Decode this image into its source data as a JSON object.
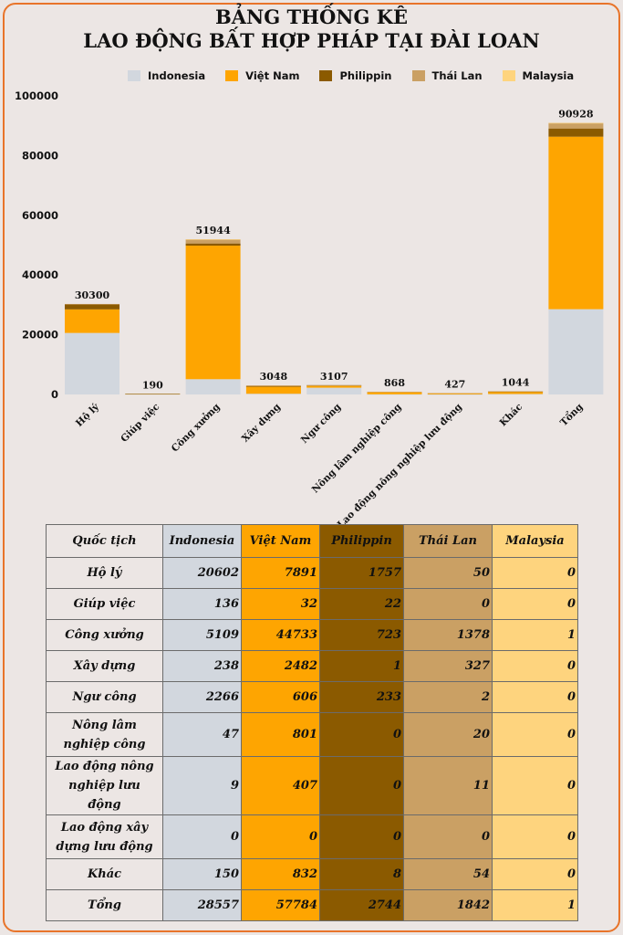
{
  "title_line1": "BẢNG THỐNG KÊ",
  "title_line2": "LAO ĐỘNG BẤT HỢP PHÁP TẠI ĐÀI LOAN",
  "colors": {
    "Indonesia": "#d2d7de",
    "Việt Nam": "#fea501",
    "Philippin": "#8b5a00",
    "Thái Lan": "#caa064",
    "Malaysia": "#fed47e"
  },
  "chart_data": {
    "type": "bar",
    "stacked": true,
    "ylim": [
      0,
      100000
    ],
    "yticks": [
      0,
      20000,
      40000,
      60000,
      80000,
      100000
    ],
    "categories": [
      "Hộ lý",
      "Giúp việc",
      "Công xưởng",
      "Xây dựng",
      "Ngư công",
      "Nông lâm nghiệp công",
      "Lao động nông nghiệp lưu động",
      "Khác",
      "Tổng"
    ],
    "series": [
      {
        "name": "Indonesia",
        "values": [
          20602,
          136,
          5109,
          238,
          2266,
          47,
          9,
          150,
          28557
        ]
      },
      {
        "name": "Việt Nam",
        "values": [
          7891,
          32,
          44733,
          2482,
          606,
          801,
          407,
          832,
          57784
        ]
      },
      {
        "name": "Philippin",
        "values": [
          1757,
          22,
          723,
          1,
          233,
          0,
          0,
          8,
          2744
        ]
      },
      {
        "name": "Thái Lan",
        "values": [
          50,
          0,
          1378,
          327,
          2,
          20,
          11,
          54,
          1842
        ]
      },
      {
        "name": "Malaysia",
        "values": [
          0,
          0,
          1,
          0,
          0,
          0,
          0,
          0,
          1
        ]
      }
    ],
    "totals": [
      30300,
      190,
      51944,
      3048,
      3107,
      868,
      427,
      1044,
      90928
    ],
    "legend_position": "top",
    "grid": false
  },
  "table": {
    "headers": [
      "Quốc tịch",
      "Indonesia",
      "Việt Nam",
      "Philippin",
      "Thái Lan",
      "Malaysia"
    ],
    "rows": [
      {
        "label": "Hộ lý",
        "values": [
          "20602",
          "7891",
          "1757",
          "50",
          "0"
        ]
      },
      {
        "label": "Giúp việc",
        "values": [
          "136",
          "32",
          "22",
          "0",
          "0"
        ]
      },
      {
        "label": "Công xưởng",
        "values": [
          "5109",
          "44733",
          "723",
          "1378",
          "1"
        ]
      },
      {
        "label": "Xây dựng",
        "values": [
          "238",
          "2482",
          "1",
          "327",
          "0"
        ]
      },
      {
        "label": "Ngư công",
        "values": [
          "2266",
          "606",
          "233",
          "2",
          "0"
        ]
      },
      {
        "label": "Nông lâm nghiệp công",
        "values": [
          "47",
          "801",
          "0",
          "20",
          "0"
        ]
      },
      {
        "label": "Lao động nông nghiệp lưu động",
        "values": [
          "9",
          "407",
          "0",
          "11",
          "0"
        ]
      },
      {
        "label": "Lao động xây dựng lưu động",
        "values": [
          "0",
          "0",
          "0",
          "0",
          "0"
        ]
      },
      {
        "label": "Khác",
        "values": [
          "150",
          "832",
          "8",
          "54",
          "0"
        ]
      },
      {
        "label": "Tổng",
        "values": [
          "28557",
          "57784",
          "2744",
          "1842",
          "1"
        ]
      }
    ]
  }
}
